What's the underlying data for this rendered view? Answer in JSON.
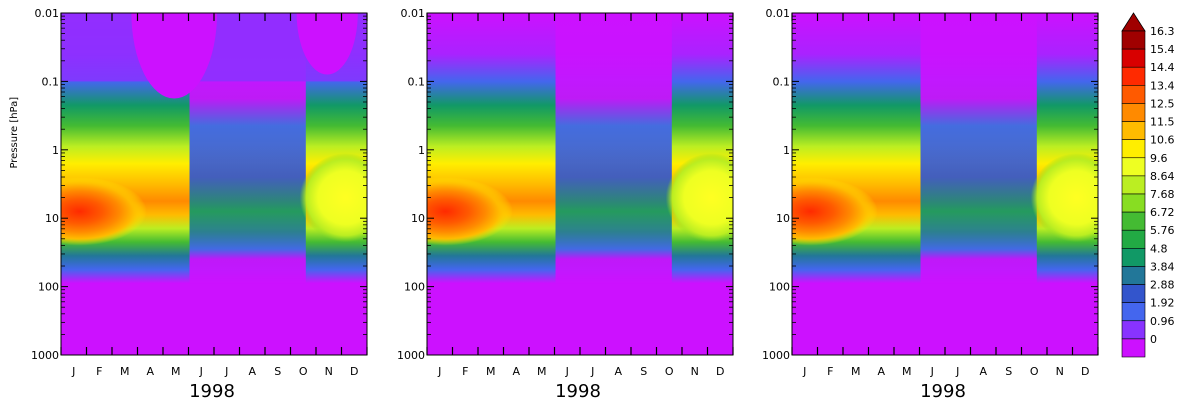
{
  "chart_data": {
    "type": "heatmap",
    "panels": [
      {
        "year_label": "1998",
        "ylabel": "Pressure [hPa]"
      },
      {
        "year_label": "1998",
        "ylabel": ""
      },
      {
        "year_label": "1998",
        "ylabel": ""
      }
    ],
    "x_tick_labels": [
      "J",
      "F",
      "M",
      "A",
      "M",
      "J",
      "J",
      "A",
      "S",
      "O",
      "N",
      "D"
    ],
    "y_tick_labels": [
      "0.01",
      "0.1",
      "1",
      "10",
      "100",
      "1000"
    ],
    "y_scale": "log",
    "ylim": [
      1000,
      0.01
    ],
    "colorbar": {
      "labels": [
        "16.3",
        "15.4",
        "14.4",
        "13.4",
        "12.5",
        "11.5",
        "10.6",
        "9.6",
        "8.64",
        "7.68",
        "6.72",
        "5.76",
        "4.8",
        "3.84",
        "2.88",
        "1.92",
        "0.96",
        "0"
      ],
      "colors": [
        "#a00000",
        "#d80000",
        "#ff2a00",
        "#ff5a00",
        "#ff8a00",
        "#ffbb00",
        "#ffee00",
        "#eeff22",
        "#bbee22",
        "#88dd22",
        "#44bb33",
        "#22aa44",
        "#119966",
        "#227799",
        "#3355cc",
        "#4466ee",
        "#8833ff",
        "#cc11ff"
      ],
      "extend": "max"
    }
  }
}
